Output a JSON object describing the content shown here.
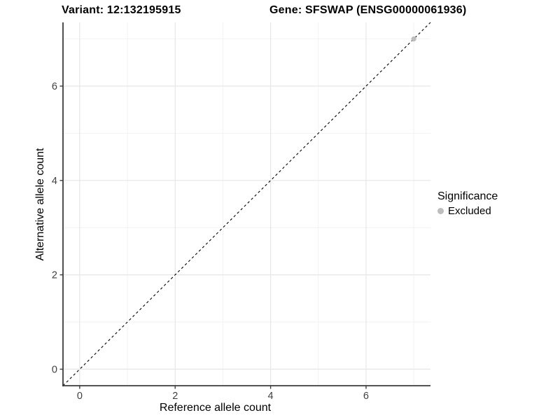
{
  "header": {
    "variant_title": "Variant: 12:132195915",
    "gene_title": "Gene: SFSWAP (ENSG00000061936)"
  },
  "legend": {
    "title": "Significance",
    "items": [
      {
        "label": "Excluded",
        "color": "#bdbdbd"
      }
    ]
  },
  "chart_data": {
    "type": "scatter",
    "title_left": "Variant: 12:132195915",
    "title_right": "Gene: SFSWAP (ENSG00000061936)",
    "xlabel": "Reference allele count",
    "ylabel": "Alternative allele count",
    "xlim": [
      -0.35,
      7.35
    ],
    "ylim": [
      -0.35,
      7.35
    ],
    "x_ticks": [
      0,
      2,
      4,
      6
    ],
    "y_ticks": [
      0,
      2,
      4,
      6
    ],
    "x_minor_gridlines": [
      1,
      3,
      5,
      7
    ],
    "y_minor_gridlines": [
      1,
      3,
      5,
      7
    ],
    "grid": true,
    "legend_position": "right",
    "legend_title": "Significance",
    "reference_line": {
      "type": "abline",
      "slope": 1,
      "intercept": 0,
      "style": "dashed",
      "color": "#000000"
    },
    "series": [
      {
        "name": "Excluded",
        "color": "#bdbdbd",
        "points": [
          {
            "x": 7,
            "y": 7
          }
        ]
      }
    ]
  },
  "colors": {
    "background": "#ffffff",
    "grid_major": "#e6e6e6",
    "grid_minor": "#f2f2f2",
    "axis_line": "#3c3c3c",
    "tick_label": "#404040",
    "point_excluded": "#bdbdbd"
  }
}
